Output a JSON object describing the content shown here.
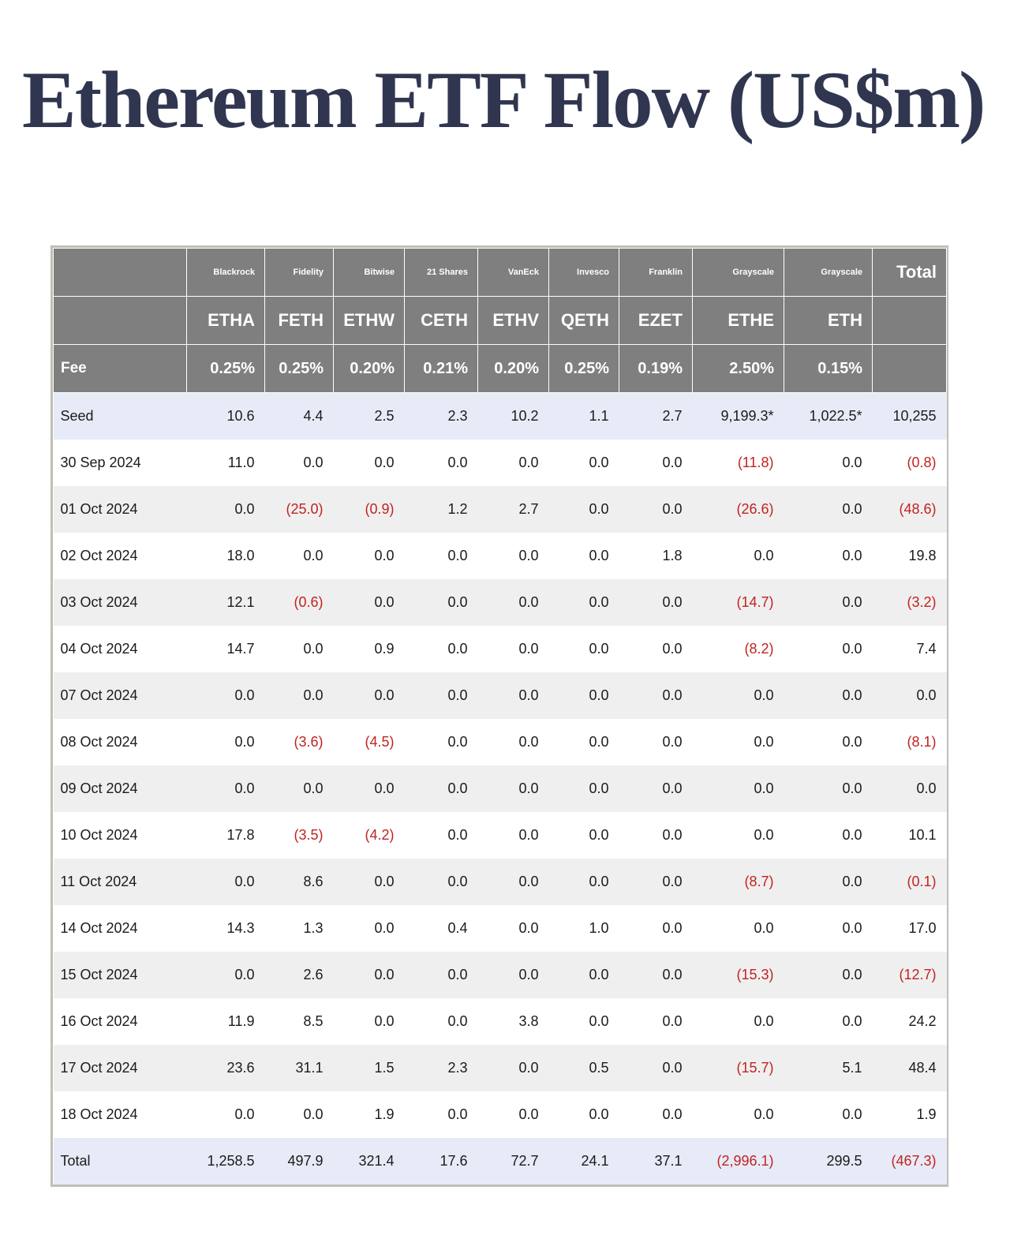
{
  "colors": {
    "title_color": "#303650",
    "header_bg": "#7f7f7f",
    "header_text": "#ffffff",
    "stripe_row_bg": "#efefef",
    "highlight_row_bg": "#e7ebf7",
    "negative_value_color": "#c32222",
    "body_text": "#1b1b1b"
  },
  "chart_data": {
    "type": "table",
    "title": "Ethereum ETF Flow (US$m)",
    "total_column_label": "Total",
    "fee_row_label": "Fee",
    "column_groups": {
      "issuers": [
        "Blackrock",
        "Fidelity",
        "Bitwise",
        "21 Shares",
        "VanEck",
        "Invesco",
        "Franklin",
        "Grayscale",
        "Grayscale"
      ],
      "tickers": [
        "ETHA",
        "FETH",
        "ETHW",
        "CETH",
        "ETHV",
        "QETH",
        "EZET",
        "ETHE",
        "ETH"
      ],
      "fees": [
        "0.25%",
        "0.25%",
        "0.20%",
        "0.21%",
        "0.20%",
        "0.25%",
        "0.19%",
        "2.50%",
        "0.15%"
      ]
    },
    "rows": [
      {
        "label": "Seed",
        "type": "summary",
        "values": [
          "10.6",
          "4.4",
          "2.5",
          "2.3",
          "10.2",
          "1.1",
          "2.7",
          "9,199.3*",
          "1,022.5*",
          "10,255"
        ]
      },
      {
        "label": "30 Sep 2024",
        "type": "data",
        "values": [
          "11.0",
          "0.0",
          "0.0",
          "0.0",
          "0.0",
          "0.0",
          "0.0",
          "(11.8)",
          "0.0",
          "(0.8)"
        ]
      },
      {
        "label": "01 Oct 2024",
        "type": "data",
        "values": [
          "0.0",
          "(25.0)",
          "(0.9)",
          "1.2",
          "2.7",
          "0.0",
          "0.0",
          "(26.6)",
          "0.0",
          "(48.6)"
        ]
      },
      {
        "label": "02 Oct 2024",
        "type": "data",
        "values": [
          "18.0",
          "0.0",
          "0.0",
          "0.0",
          "0.0",
          "0.0",
          "1.8",
          "0.0",
          "0.0",
          "19.8"
        ]
      },
      {
        "label": "03 Oct 2024",
        "type": "data",
        "values": [
          "12.1",
          "(0.6)",
          "0.0",
          "0.0",
          "0.0",
          "0.0",
          "0.0",
          "(14.7)",
          "0.0",
          "(3.2)"
        ]
      },
      {
        "label": "04 Oct 2024",
        "type": "data",
        "values": [
          "14.7",
          "0.0",
          "0.9",
          "0.0",
          "0.0",
          "0.0",
          "0.0",
          "(8.2)",
          "0.0",
          "7.4"
        ]
      },
      {
        "label": "07 Oct 2024",
        "type": "data",
        "values": [
          "0.0",
          "0.0",
          "0.0",
          "0.0",
          "0.0",
          "0.0",
          "0.0",
          "0.0",
          "0.0",
          "0.0"
        ]
      },
      {
        "label": "08 Oct 2024",
        "type": "data",
        "values": [
          "0.0",
          "(3.6)",
          "(4.5)",
          "0.0",
          "0.0",
          "0.0",
          "0.0",
          "0.0",
          "0.0",
          "(8.1)"
        ]
      },
      {
        "label": "09 Oct 2024",
        "type": "data",
        "values": [
          "0.0",
          "0.0",
          "0.0",
          "0.0",
          "0.0",
          "0.0",
          "0.0",
          "0.0",
          "0.0",
          "0.0"
        ]
      },
      {
        "label": "10 Oct 2024",
        "type": "data",
        "values": [
          "17.8",
          "(3.5)",
          "(4.2)",
          "0.0",
          "0.0",
          "0.0",
          "0.0",
          "0.0",
          "0.0",
          "10.1"
        ]
      },
      {
        "label": "11 Oct 2024",
        "type": "data",
        "values": [
          "0.0",
          "8.6",
          "0.0",
          "0.0",
          "0.0",
          "0.0",
          "0.0",
          "(8.7)",
          "0.0",
          "(0.1)"
        ]
      },
      {
        "label": "14 Oct 2024",
        "type": "data",
        "values": [
          "14.3",
          "1.3",
          "0.0",
          "0.4",
          "0.0",
          "1.0",
          "0.0",
          "0.0",
          "0.0",
          "17.0"
        ]
      },
      {
        "label": "15 Oct 2024",
        "type": "data",
        "values": [
          "0.0",
          "2.6",
          "0.0",
          "0.0",
          "0.0",
          "0.0",
          "0.0",
          "(15.3)",
          "0.0",
          "(12.7)"
        ]
      },
      {
        "label": "16 Oct 2024",
        "type": "data",
        "values": [
          "11.9",
          "8.5",
          "0.0",
          "0.0",
          "3.8",
          "0.0",
          "0.0",
          "0.0",
          "0.0",
          "24.2"
        ]
      },
      {
        "label": "17 Oct 2024",
        "type": "data",
        "values": [
          "23.6",
          "31.1",
          "1.5",
          "2.3",
          "0.0",
          "0.5",
          "0.0",
          "(15.7)",
          "5.1",
          "48.4"
        ]
      },
      {
        "label": "18 Oct 2024",
        "type": "data",
        "values": [
          "0.0",
          "0.0",
          "1.9",
          "0.0",
          "0.0",
          "0.0",
          "0.0",
          "0.0",
          "0.0",
          "1.9"
        ]
      },
      {
        "label": "Total",
        "type": "summary",
        "values": [
          "1,258.5",
          "497.9",
          "321.4",
          "17.6",
          "72.7",
          "24.1",
          "37.1",
          "(2,996.1)",
          "299.5",
          "(467.3)"
        ]
      }
    ]
  }
}
